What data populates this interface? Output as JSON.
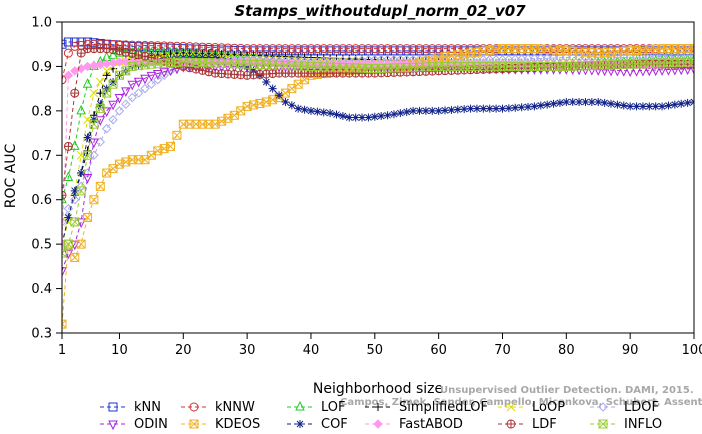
{
  "chart_data": {
    "type": "line",
    "title": "Stamps_withoutdupl_norm_02_v07",
    "xlabel": "Neighborhood size",
    "ylabel": "ROC AUC",
    "xlim": [
      1,
      100
    ],
    "ylim": [
      0.3,
      1.0
    ],
    "xticks": [
      1,
      10,
      20,
      30,
      40,
      50,
      60,
      70,
      80,
      90,
      100
    ],
    "yticks": [
      0.3,
      0.4,
      0.5,
      0.6,
      0.7,
      0.8,
      0.9,
      1.0
    ],
    "grid": false,
    "legend_position": "bottom",
    "watermark": [
      "Unsupervised Outlier Detection. DAMI, 2015.",
      "Campos, Zimek, Sander, Campello, Micenkova, Schubert, Assent, Houle"
    ],
    "series": [
      {
        "name": "kNN",
        "color": "#2233cc",
        "marker": "square",
        "points": [
          [
            1,
            0.95
          ],
          [
            2,
            0.955
          ],
          [
            3,
            0.955
          ],
          [
            5,
            0.955
          ],
          [
            8,
            0.95
          ],
          [
            12,
            0.945
          ],
          [
            20,
            0.94
          ],
          [
            30,
            0.935
          ],
          [
            40,
            0.935
          ],
          [
            50,
            0.935
          ],
          [
            60,
            0.935
          ],
          [
            70,
            0.935
          ],
          [
            80,
            0.935
          ],
          [
            90,
            0.935
          ],
          [
            100,
            0.935
          ]
        ]
      },
      {
        "name": "kNNW",
        "color": "#cc3333",
        "marker": "circle",
        "points": [
          [
            1,
            0.87
          ],
          [
            2,
            0.93
          ],
          [
            3,
            0.945
          ],
          [
            5,
            0.95
          ],
          [
            8,
            0.95
          ],
          [
            12,
            0.948
          ],
          [
            20,
            0.945
          ],
          [
            30,
            0.94
          ],
          [
            40,
            0.94
          ],
          [
            50,
            0.94
          ],
          [
            60,
            0.94
          ],
          [
            70,
            0.94
          ],
          [
            80,
            0.94
          ],
          [
            90,
            0.94
          ],
          [
            100,
            0.94
          ]
        ]
      },
      {
        "name": "LOF",
        "color": "#22cc22",
        "marker": "triangle-up",
        "points": [
          [
            1,
            0.6
          ],
          [
            2,
            0.65
          ],
          [
            3,
            0.72
          ],
          [
            4,
            0.8
          ],
          [
            5,
            0.86
          ],
          [
            6,
            0.9
          ],
          [
            8,
            0.92
          ],
          [
            10,
            0.93
          ],
          [
            15,
            0.93
          ],
          [
            20,
            0.93
          ],
          [
            30,
            0.92
          ],
          [
            35,
            0.91
          ],
          [
            40,
            0.905
          ],
          [
            50,
            0.905
          ],
          [
            60,
            0.905
          ],
          [
            70,
            0.905
          ],
          [
            80,
            0.905
          ],
          [
            90,
            0.91
          ],
          [
            100,
            0.915
          ]
        ]
      },
      {
        "name": "SimplifiedLOF",
        "color": "#000000",
        "marker": "plus",
        "points": [
          [
            1,
            0.5
          ],
          [
            2,
            0.56
          ],
          [
            3,
            0.61
          ],
          [
            4,
            0.66
          ],
          [
            5,
            0.71
          ],
          [
            6,
            0.79
          ],
          [
            7,
            0.84
          ],
          [
            8,
            0.88
          ],
          [
            10,
            0.91
          ],
          [
            15,
            0.925
          ],
          [
            20,
            0.93
          ],
          [
            30,
            0.925
          ],
          [
            40,
            0.92
          ],
          [
            50,
            0.915
          ],
          [
            60,
            0.91
          ],
          [
            70,
            0.905
          ],
          [
            80,
            0.905
          ],
          [
            90,
            0.905
          ],
          [
            100,
            0.905
          ]
        ]
      },
      {
        "name": "LoOP",
        "color": "#dddd00",
        "marker": "x",
        "points": [
          [
            1,
            0.5
          ],
          [
            2,
            0.55
          ],
          [
            3,
            0.62
          ],
          [
            4,
            0.7
          ],
          [
            5,
            0.78
          ],
          [
            6,
            0.84
          ],
          [
            8,
            0.89
          ],
          [
            10,
            0.91
          ],
          [
            15,
            0.92
          ],
          [
            20,
            0.925
          ],
          [
            30,
            0.92
          ],
          [
            40,
            0.91
          ],
          [
            50,
            0.91
          ],
          [
            60,
            0.91
          ],
          [
            70,
            0.905
          ],
          [
            80,
            0.91
          ],
          [
            90,
            0.91
          ],
          [
            100,
            0.91
          ]
        ]
      },
      {
        "name": "LDOF",
        "color": "#aaaaee",
        "marker": "diamond",
        "points": [
          [
            1,
            0.55
          ],
          [
            2,
            0.58
          ],
          [
            3,
            0.6
          ],
          [
            4,
            0.63
          ],
          [
            5,
            0.66
          ],
          [
            6,
            0.7
          ],
          [
            8,
            0.76
          ],
          [
            10,
            0.8
          ],
          [
            12,
            0.83
          ],
          [
            15,
            0.86
          ],
          [
            18,
            0.89
          ],
          [
            20,
            0.905
          ],
          [
            25,
            0.91
          ],
          [
            30,
            0.915
          ],
          [
            40,
            0.91
          ],
          [
            50,
            0.915
          ],
          [
            60,
            0.915
          ],
          [
            70,
            0.915
          ],
          [
            80,
            0.92
          ],
          [
            90,
            0.92
          ],
          [
            100,
            0.925
          ]
        ]
      },
      {
        "name": "ODIN",
        "color": "#aa22dd",
        "marker": "triangle-down",
        "points": [
          [
            1,
            0.44
          ],
          [
            2,
            0.48
          ],
          [
            3,
            0.5
          ],
          [
            4,
            0.55
          ],
          [
            5,
            0.65
          ],
          [
            6,
            0.73
          ],
          [
            7,
            0.78
          ],
          [
            8,
            0.8
          ],
          [
            10,
            0.83
          ],
          [
            12,
            0.86
          ],
          [
            15,
            0.88
          ],
          [
            20,
            0.9
          ],
          [
            25,
            0.9
          ],
          [
            30,
            0.9
          ],
          [
            40,
            0.9
          ],
          [
            50,
            0.9
          ],
          [
            60,
            0.9
          ],
          [
            70,
            0.895
          ],
          [
            80,
            0.895
          ],
          [
            90,
            0.89
          ],
          [
            100,
            0.895
          ]
        ]
      },
      {
        "name": "KDEOS",
        "color": "#f0b020",
        "marker": "square-x",
        "points": [
          [
            1,
            0.32
          ],
          [
            2,
            0.5
          ],
          [
            3,
            0.47
          ],
          [
            4,
            0.5
          ],
          [
            5,
            0.56
          ],
          [
            6,
            0.6
          ],
          [
            7,
            0.63
          ],
          [
            8,
            0.66
          ],
          [
            9,
            0.67
          ],
          [
            10,
            0.68
          ],
          [
            12,
            0.69
          ],
          [
            14,
            0.69
          ],
          [
            16,
            0.71
          ],
          [
            18,
            0.72
          ],
          [
            20,
            0.77
          ],
          [
            22,
            0.77
          ],
          [
            25,
            0.77
          ],
          [
            28,
            0.79
          ],
          [
            30,
            0.81
          ],
          [
            33,
            0.82
          ],
          [
            35,
            0.83
          ],
          [
            37,
            0.85
          ],
          [
            40,
            0.88
          ],
          [
            45,
            0.89
          ],
          [
            50,
            0.895
          ],
          [
            55,
            0.9
          ],
          [
            60,
            0.92
          ],
          [
            65,
            0.93
          ],
          [
            70,
            0.94
          ],
          [
            75,
            0.94
          ],
          [
            80,
            0.935
          ],
          [
            85,
            0.93
          ],
          [
            90,
            0.935
          ],
          [
            95,
            0.94
          ],
          [
            100,
            0.94
          ]
        ]
      },
      {
        "name": "COF",
        "color": "#112288",
        "marker": "star",
        "points": [
          [
            1,
            0.5
          ],
          [
            2,
            0.56
          ],
          [
            3,
            0.62
          ],
          [
            4,
            0.66
          ],
          [
            5,
            0.74
          ],
          [
            6,
            0.78
          ],
          [
            8,
            0.85
          ],
          [
            10,
            0.88
          ],
          [
            12,
            0.9
          ],
          [
            15,
            0.91
          ],
          [
            20,
            0.92
          ],
          [
            25,
            0.92
          ],
          [
            30,
            0.9
          ],
          [
            32,
            0.88
          ],
          [
            34,
            0.85
          ],
          [
            36,
            0.82
          ],
          [
            38,
            0.805
          ],
          [
            40,
            0.8
          ],
          [
            43,
            0.795
          ],
          [
            46,
            0.785
          ],
          [
            49,
            0.785
          ],
          [
            52,
            0.79
          ],
          [
            56,
            0.8
          ],
          [
            60,
            0.8
          ],
          [
            65,
            0.805
          ],
          [
            70,
            0.805
          ],
          [
            75,
            0.81
          ],
          [
            80,
            0.82
          ],
          [
            85,
            0.82
          ],
          [
            90,
            0.81
          ],
          [
            95,
            0.81
          ],
          [
            100,
            0.82
          ]
        ]
      },
      {
        "name": "FastABOD",
        "color": "#ff99ee",
        "marker": "diamond-filled",
        "points": [
          [
            1,
            0.5
          ],
          [
            2,
            0.88
          ],
          [
            3,
            0.89
          ],
          [
            5,
            0.9
          ],
          [
            10,
            0.91
          ],
          [
            20,
            0.91
          ],
          [
            30,
            0.91
          ],
          [
            40,
            0.905
          ],
          [
            50,
            0.905
          ],
          [
            60,
            0.905
          ],
          [
            70,
            0.905
          ],
          [
            80,
            0.905
          ],
          [
            90,
            0.905
          ],
          [
            100,
            0.905
          ]
        ]
      },
      {
        "name": "LDF",
        "color": "#aa3333",
        "marker": "circle-plus",
        "points": [
          [
            1,
            0.61
          ],
          [
            2,
            0.72
          ],
          [
            3,
            0.84
          ],
          [
            4,
            0.93
          ],
          [
            5,
            0.94
          ],
          [
            8,
            0.94
          ],
          [
            10,
            0.935
          ],
          [
            15,
            0.92
          ],
          [
            20,
            0.9
          ],
          [
            25,
            0.885
          ],
          [
            30,
            0.88
          ],
          [
            35,
            0.885
          ],
          [
            40,
            0.885
          ],
          [
            50,
            0.885
          ],
          [
            60,
            0.89
          ],
          [
            70,
            0.895
          ],
          [
            80,
            0.9
          ],
          [
            90,
            0.905
          ],
          [
            100,
            0.905
          ]
        ]
      },
      {
        "name": "INFLO",
        "color": "#99cc33",
        "marker": "square-x",
        "points": [
          [
            1,
            0.48
          ],
          [
            2,
            0.5
          ],
          [
            3,
            0.55
          ],
          [
            4,
            0.62
          ],
          [
            5,
            0.7
          ],
          [
            6,
            0.77
          ],
          [
            8,
            0.84
          ],
          [
            10,
            0.88
          ],
          [
            12,
            0.9
          ],
          [
            15,
            0.905
          ],
          [
            20,
            0.91
          ],
          [
            30,
            0.905
          ],
          [
            40,
            0.9
          ],
          [
            50,
            0.895
          ],
          [
            60,
            0.9
          ],
          [
            70,
            0.9
          ],
          [
            80,
            0.9
          ],
          [
            90,
            0.905
          ],
          [
            100,
            0.91
          ]
        ]
      }
    ],
    "legend_order": [
      "kNN",
      "kNNW",
      "LOF",
      "SimplifiedLOF",
      "LoOP",
      "LDOF",
      "ODIN",
      "KDEOS",
      "COF",
      "FastABOD",
      "LDF",
      "INFLO"
    ]
  }
}
